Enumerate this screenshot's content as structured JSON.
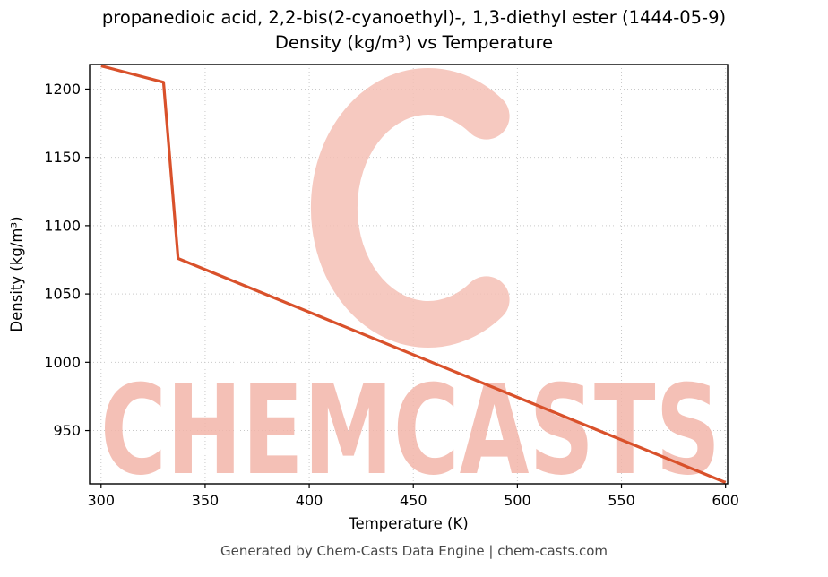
{
  "chart_data": {
    "type": "line",
    "title": "propanedioic acid, 2,2-bis(2-cyanoethyl)-, 1,3-diethyl ester (1444-05-9)",
    "subtitle": "Density (kg/m³) vs Temperature",
    "xlabel": "Temperature (K)",
    "ylabel": "Density (kg/m³)",
    "series": [
      {
        "name": "Density",
        "x": [
          300,
          330,
          337,
          600
        ],
        "y": [
          1217,
          1205,
          1076,
          912
        ]
      }
    ],
    "xlim": [
      294.5,
      601
    ],
    "ylim": [
      911,
      1218
    ],
    "xticks": [
      300,
      350,
      400,
      450,
      500,
      550,
      600
    ],
    "yticks": [
      950,
      1000,
      1050,
      1100,
      1150,
      1200
    ],
    "grid": true,
    "legend": "none",
    "line_color": "#d9512b"
  },
  "watermark": {
    "text": "CHEMCASTS",
    "logo": "c-swirl-logo",
    "color": "#f3b6aa"
  },
  "footer": "Generated by Chem-Casts Data Engine | chem-casts.com"
}
